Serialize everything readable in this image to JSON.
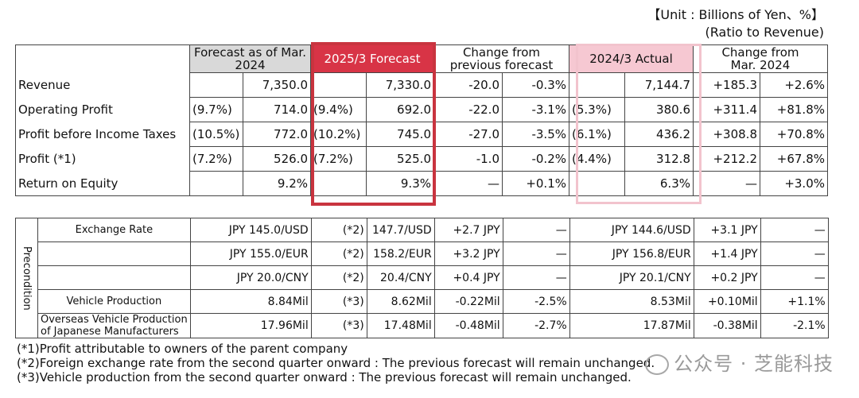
{
  "unit_line1": "【Unit : Billions of Yen、%】",
  "unit_line2": "(Ratio to Revenue)",
  "headers": {
    "forecast_mar": "Forecast as of Mar.",
    "forecast_mar_year": "2024",
    "forecast_2025": "2025/3 Forecast",
    "change_prev": "Change from",
    "change_prev2": "previous forecast",
    "actual_2024": "2024/3 Actual",
    "change_mar": "Change from",
    "change_mar2": "Mar. 2024"
  },
  "rows": [
    {
      "label": "Revenue",
      "r1": "",
      "v1": "7,350.0",
      "r2": "",
      "v2": "7,330.0",
      "d1": "-20.0",
      "d2": "-0.3%",
      "r3": "",
      "v3": "7,144.7",
      "d3": "+185.3",
      "d4": "+2.6%"
    },
    {
      "label": "Operating Profit",
      "r1": "(9.7%)",
      "v1": "714.0",
      "r2": "(9.4%)",
      "v2": "692.0",
      "d1": "-22.0",
      "d2": "-3.1%",
      "r3": "(5.3%)",
      "v3": "380.6",
      "d3": "+311.4",
      "d4": "+81.8%"
    },
    {
      "label": "Profit before Income Taxes",
      "r1": "(10.5%)",
      "v1": "772.0",
      "r2": "(10.2%)",
      "v2": "745.0",
      "d1": "-27.0",
      "d2": "-3.5%",
      "r3": "(6.1%)",
      "v3": "436.2",
      "d3": "+308.8",
      "d4": "+70.8%"
    },
    {
      "label": "Profit (*1)",
      "r1": "(7.2%)",
      "v1": "526.0",
      "r2": "(7.2%)",
      "v2": "525.0",
      "d1": "-1.0",
      "d2": "-0.2%",
      "r3": "(4.4%)",
      "v3": "312.8",
      "d3": "+212.2",
      "d4": "+67.8%"
    },
    {
      "label": "Return on Equity",
      "r1": "",
      "v1": "9.2%",
      "r2": "",
      "v2": "9.3%",
      "d1": "—",
      "d2": "+0.1%",
      "r3": "",
      "v3": "6.3%",
      "d3": "—",
      "d4": "+3.0%"
    }
  ],
  "precondition": {
    "label": "Precondition",
    "rows": [
      {
        "label": "Exchange Rate",
        "cur1": "JPY",
        "v1": "145.0/USD",
        "note": "(*2)",
        "v2": "147.7/USD",
        "d1": "+2.7 JPY",
        "d2": "—",
        "cur3": "JPY",
        "v3": "144.6/USD",
        "d3": "+3.1 JPY",
        "d4": "—"
      },
      {
        "label": "",
        "cur1": "JPY",
        "v1": "155.0/EUR",
        "note": "(*2)",
        "v2": "158.2/EUR",
        "d1": "+3.2 JPY",
        "d2": "—",
        "cur3": "JPY",
        "v3": "156.8/EUR",
        "d3": "+1.4 JPY",
        "d4": "—"
      },
      {
        "label": "",
        "cur1": "JPY",
        "v1": "20.0/CNY",
        "note": "(*2)",
        "v2": "20.4/CNY",
        "d1": "+0.4 JPY",
        "d2": "—",
        "cur3": "JPY",
        "v3": "20.1/CNY",
        "d3": "+0.2 JPY",
        "d4": "—"
      },
      {
        "label": "Vehicle Production",
        "cur1": "",
        "v1": "8.84Mil",
        "note": "(*3)",
        "v2": "8.62Mil",
        "d1": "-0.22Mil",
        "d2": "-2.5%",
        "cur3": "",
        "v3": "8.53Mil",
        "d3": "+0.10Mil",
        "d4": "+1.1%"
      },
      {
        "label": "Overseas Vehicle Production",
        "label2": "of Japanese Manufacturers",
        "cur1": "",
        "v1": "17.96Mil",
        "note": "(*3)",
        "v2": "17.48Mil",
        "d1": "-0.48Mil",
        "d2": "-2.7%",
        "cur3": "",
        "v3": "17.87Mil",
        "d3": "-0.38Mil",
        "d4": "-2.1%"
      }
    ]
  },
  "notes": [
    "(*1)Profit attributable to owners of the parent company",
    "(*2)Foreign exchange rate from the second quarter onward : The previous forecast will remain unchanged.",
    "(*3)Vehicle production from the second quarter onward : The previous forecast will remain unchanged."
  ],
  "watermark": "公众号 · 芝能科技"
}
